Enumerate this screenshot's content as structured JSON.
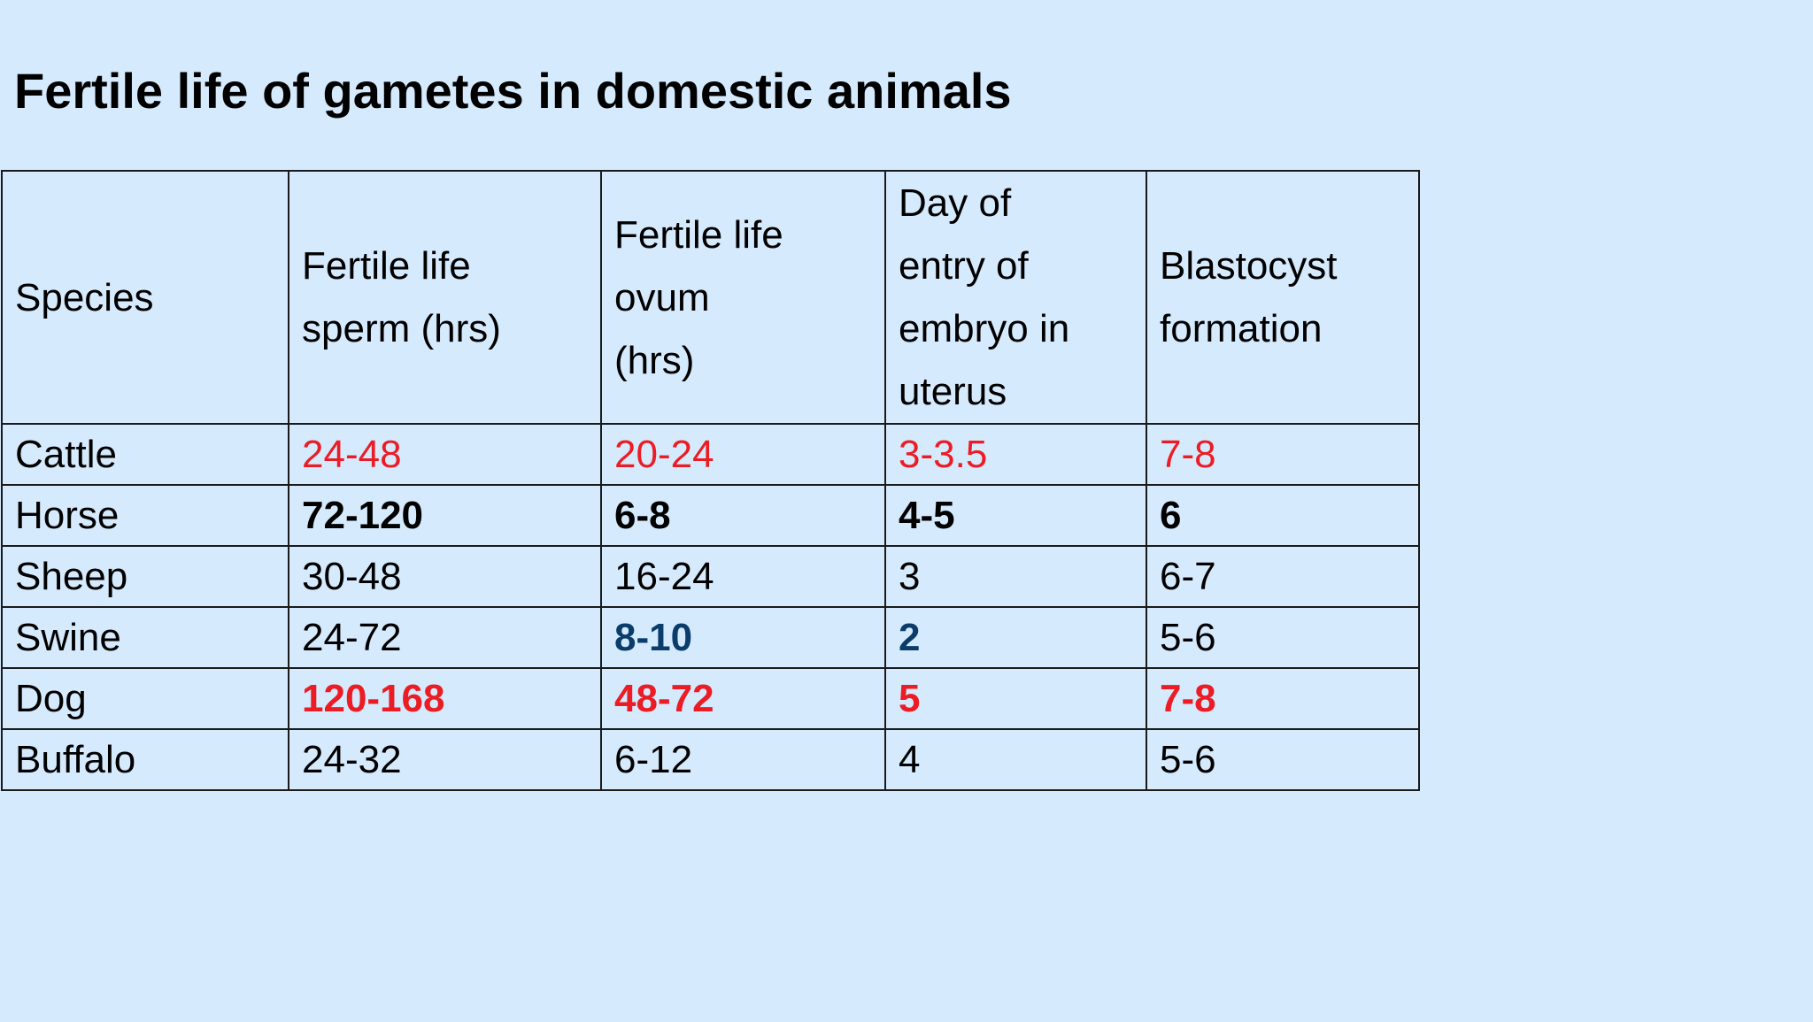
{
  "title": "Fertile life of gametes in domestic animals",
  "table": {
    "headers": [
      [
        "Species"
      ],
      [
        "Fertile life",
        "sperm (hrs)"
      ],
      [
        "Fertile life",
        "ovum",
        "(hrs)"
      ],
      [
        "Day of",
        "entry of",
        "embryo in",
        "uterus"
      ],
      [
        "Blastocyst",
        "formation"
      ]
    ],
    "rows": [
      {
        "species": "Cattle",
        "values": [
          "24-48",
          "20-24",
          "3-3.5",
          "7-8"
        ],
        "value_color": "#ec1c24",
        "value_bold": false
      },
      {
        "species": "Horse",
        "values": [
          "72-120",
          "6-8",
          "4-5",
          "6"
        ],
        "value_color": "#000000",
        "value_bold": true
      },
      {
        "species": "Sheep",
        "values": [
          "30-48",
          "16-24",
          "3",
          "6-7"
        ],
        "value_color": "#000000",
        "value_bold": false
      },
      {
        "species": "Swine",
        "values": [
          "24-72",
          "8-10",
          "2",
          "5-6"
        ],
        "value_color": "#000000",
        "value_bold": false,
        "highlight_color": "#0a3d6b",
        "highlight_columns": [
          1,
          2
        ]
      },
      {
        "species": "Dog",
        "values": [
          "120-168",
          "48-72",
          "5",
          "7-8"
        ],
        "value_color": "#ec1c24",
        "value_bold": true
      },
      {
        "species": "Buffalo",
        "values": [
          "24-32",
          "6-12",
          "4",
          "5-6"
        ],
        "value_color": "#000000",
        "value_bold": false
      }
    ]
  }
}
